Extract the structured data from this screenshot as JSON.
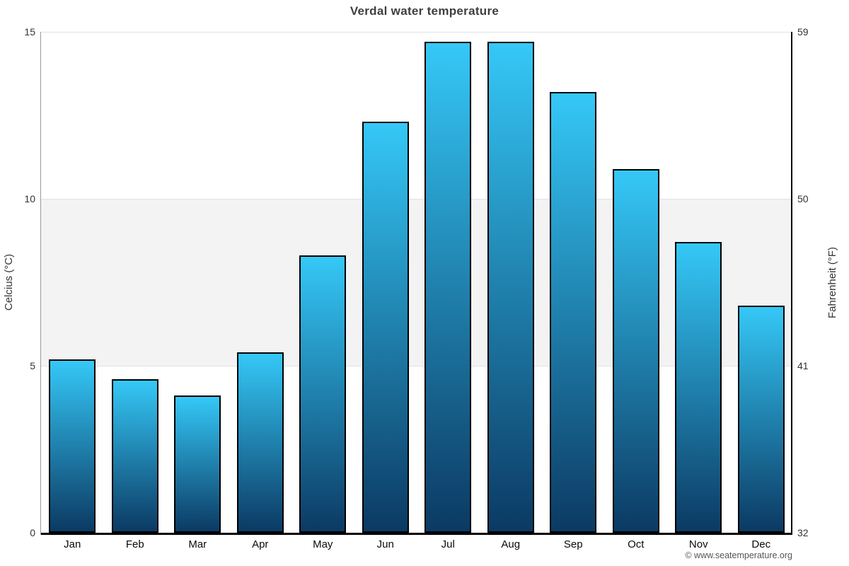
{
  "chart_data": {
    "type": "bar",
    "title": "Verdal water temperature",
    "categories": [
      "Jan",
      "Feb",
      "Mar",
      "Apr",
      "May",
      "Jun",
      "Jul",
      "Aug",
      "Sep",
      "Oct",
      "Nov",
      "Dec"
    ],
    "values": [
      5.2,
      4.6,
      4.1,
      5.4,
      8.3,
      12.3,
      14.7,
      14.7,
      13.2,
      10.9,
      8.7,
      6.8
    ],
    "ylabel_left": "Celcius (°C)",
    "ylabel_right": "Fahrenheit (°F)",
    "yticks_left": [
      0,
      5,
      10,
      15
    ],
    "yticks_right": [
      32,
      41,
      50,
      59
    ],
    "ylim": [
      0,
      15
    ],
    "shaded_band_celsius": [
      5,
      10
    ],
    "grid": true,
    "legend": false,
    "colors": {
      "bar_top": "#35c8f7",
      "bar_bottom": "#0b3a63",
      "bar_border": "#000000",
      "band": "#f3f3f3",
      "gridline": "#e2e2e2",
      "left_axis": "#999999",
      "dark_axis": "#000000",
      "title_text": "#3f3f3f",
      "tick_text": "#333333",
      "credit_text": "#555555"
    }
  },
  "footer": {
    "credit": "© www.seatemperature.org"
  }
}
